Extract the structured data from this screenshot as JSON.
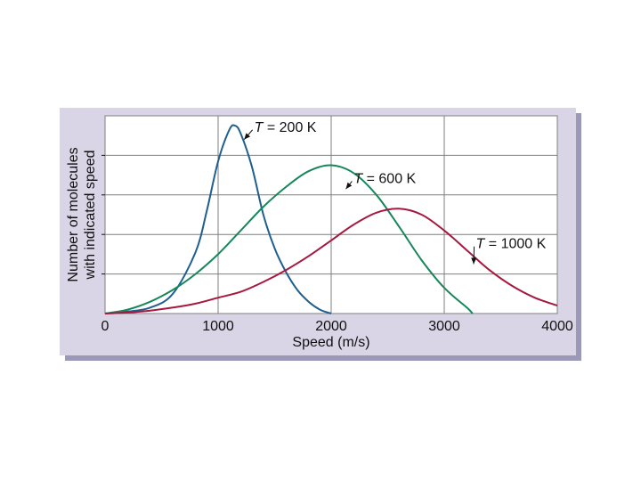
{
  "colors": {
    "panel": "#d9d4e6",
    "panel_shadow": "#9a9ab8",
    "plot_bg": "#ffffff",
    "grid": "#7f7f7f",
    "series_200": "#1f5f8f",
    "series_600": "#17875a",
    "series_1000": "#a6193f"
  },
  "chart_data": {
    "type": "line",
    "xlabel": "Speed (m/s)",
    "ylabel_lines": [
      "Number of molecules",
      "with indicated speed"
    ],
    "xlim": [
      0,
      4000
    ],
    "ylim": [
      0,
      1
    ],
    "x_ticks": [
      0,
      1000,
      2000,
      3000,
      4000
    ],
    "x_tick_labels": [
      "0",
      "1000",
      "2000",
      "3000",
      "4000"
    ],
    "y_ticks_labeled": false,
    "grid": true,
    "series": [
      {
        "name": "T = 200 K",
        "color": "#1f5f8f",
        "x": [
          0,
          200,
          400,
          600,
          800,
          900,
          1000,
          1100,
          1150,
          1200,
          1300,
          1400,
          1500,
          1600,
          1700,
          1800,
          1900,
          2000
        ],
        "y": [
          0,
          0.01,
          0.03,
          0.1,
          0.31,
          0.52,
          0.77,
          0.93,
          0.95,
          0.91,
          0.74,
          0.5,
          0.33,
          0.21,
          0.12,
          0.06,
          0.02,
          0
        ]
      },
      {
        "name": "T = 600 K",
        "color": "#17875a",
        "x": [
          0,
          200,
          400,
          600,
          800,
          1000,
          1200,
          1400,
          1600,
          1800,
          2000,
          2200,
          2400,
          2600,
          2800,
          3000,
          3200,
          3250
        ],
        "y": [
          0,
          0.02,
          0.06,
          0.12,
          0.2,
          0.3,
          0.42,
          0.54,
          0.64,
          0.72,
          0.75,
          0.71,
          0.6,
          0.44,
          0.27,
          0.13,
          0.03,
          0
        ]
      },
      {
        "name": "T = 1000 K",
        "color": "#a6193f",
        "x": [
          0,
          200,
          400,
          600,
          800,
          1000,
          1200,
          1400,
          1600,
          1800,
          2000,
          2200,
          2400,
          2600,
          2800,
          3000,
          3200,
          3400,
          3600,
          3800,
          4000
        ],
        "y": [
          0,
          0.005,
          0.015,
          0.03,
          0.05,
          0.08,
          0.11,
          0.16,
          0.22,
          0.29,
          0.37,
          0.45,
          0.51,
          0.53,
          0.5,
          0.42,
          0.32,
          0.22,
          0.14,
          0.08,
          0.04
        ]
      }
    ],
    "annotations": [
      {
        "italic": "T",
        "rest": " = 200 K",
        "text_x": 1320,
        "text_y": 0.92,
        "arrow_to": [
          1230,
          0.88
        ],
        "color": "#111111"
      },
      {
        "italic": "T",
        "rest": " = 600 K",
        "text_x": 2200,
        "text_y": 0.66,
        "arrow_to": [
          2130,
          0.63
        ],
        "color": "#111111"
      },
      {
        "italic": "T",
        "rest": " = 1000 K",
        "text_x": 3280,
        "text_y": 0.33,
        "arrow_to": [
          3260,
          0.25
        ],
        "color": "#111111"
      }
    ]
  }
}
